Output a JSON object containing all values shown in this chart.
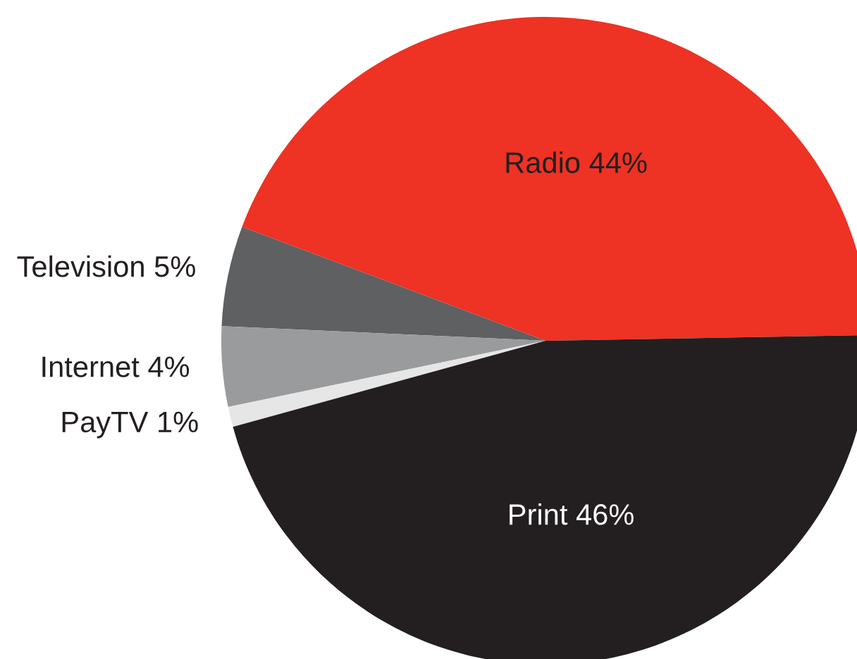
{
  "chart_data": {
    "type": "pie",
    "categories": [
      "Radio",
      "Television",
      "Internet",
      "PayTV",
      "Print"
    ],
    "values": [
      44,
      5,
      4,
      1,
      46
    ],
    "value_labels": [
      "44%",
      "5%",
      "4%",
      "1%",
      "46%"
    ],
    "colors": [
      "#ee3224",
      "#5f6062",
      "#9a9b9d",
      "#e6e6e6",
      "#231f20"
    ]
  }
}
